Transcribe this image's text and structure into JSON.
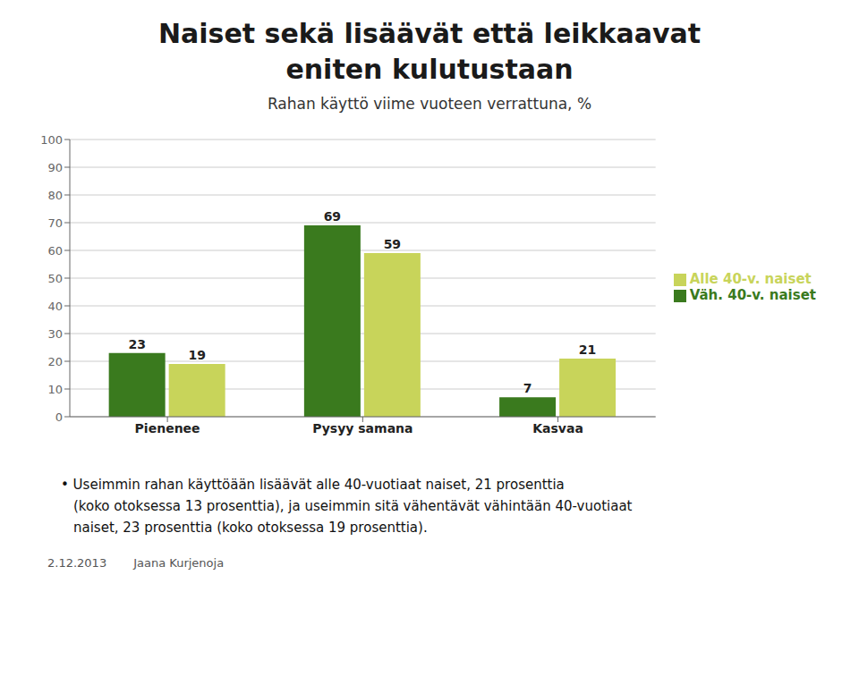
{
  "chart_data": {
    "type": "bar",
    "title": "Naiset sekä lisäävät että leikkaavat\neniten kulutustaan",
    "subtitle": "Rahan käyttö viime vuoteen verrattuna, %",
    "categories": [
      "Pienenee",
      "Pysyy samana",
      "Kasvaa"
    ],
    "series": [
      {
        "name": "Väh. 40-v. naiset",
        "color": "#3a7a1e",
        "values": [
          23,
          69,
          7
        ]
      },
      {
        "name": "Alle 40-v. naiset",
        "color": "#c8d45a",
        "values": [
          19,
          59,
          21
        ]
      }
    ],
    "ylim": [
      0,
      100
    ],
    "yticks": [
      0,
      10,
      20,
      30,
      40,
      50,
      60,
      70,
      80,
      90,
      100
    ],
    "grid": true,
    "legend": "right",
    "data_labels": true,
    "annotations": [
      "• Useimmin rahan käyttöään lisäävät alle 40-vuotiaat naiset, 21 prosenttia\n(koko otoksessa 13 prosenttia), ja useimmin sitä vähentävät vähintään 40-vuotiaat\nnaiset, 23 prosenttia (koko otoksessa 19 prosenttia).",
      "2.12.2013",
      "Jaana Kurjenoja"
    ]
  }
}
